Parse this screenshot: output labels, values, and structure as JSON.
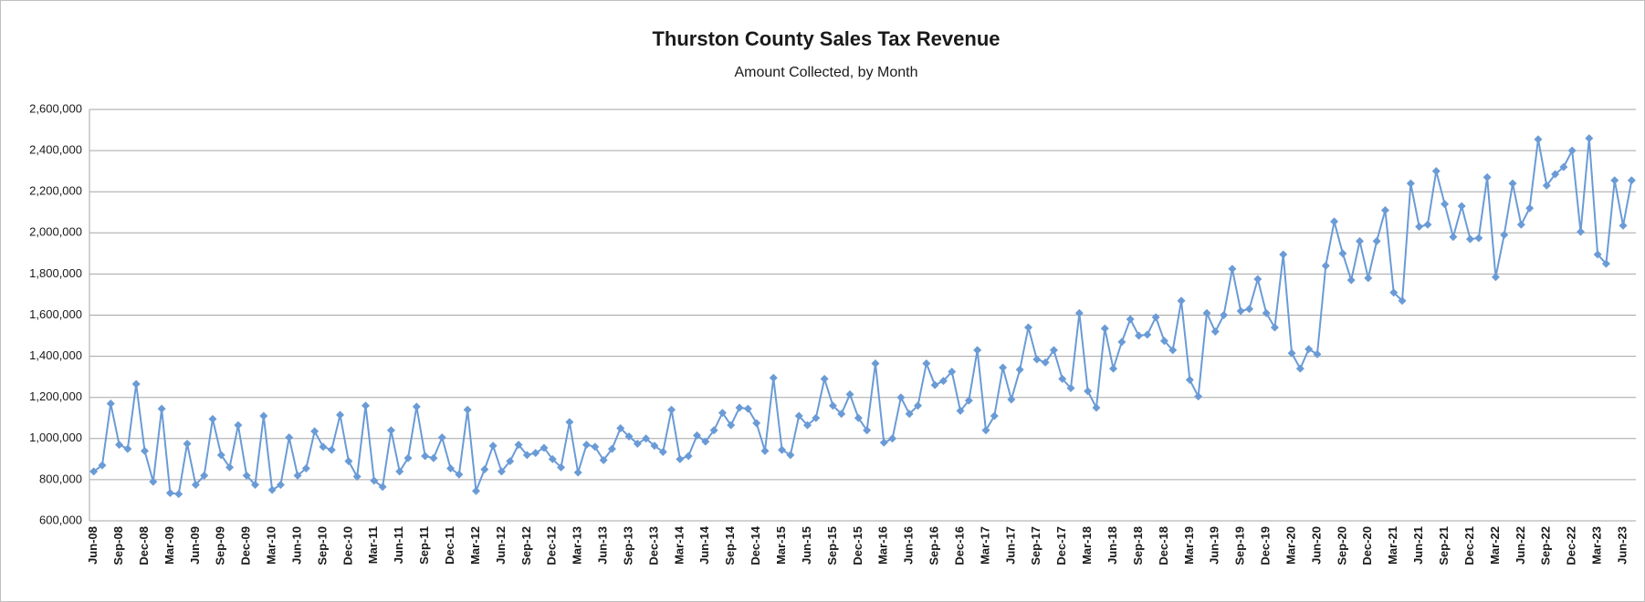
{
  "chart_data": {
    "type": "line",
    "title": "Thurston County Sales Tax Revenue",
    "subtitle": "Amount Collected, by Month",
    "ylim": [
      600000,
      2600000
    ],
    "yticks": [
      {
        "value": 600000,
        "label": "600,000"
      },
      {
        "value": 800000,
        "label": "800,000"
      },
      {
        "value": 1000000,
        "label": "1,000,000"
      },
      {
        "value": 1200000,
        "label": "1,200,000"
      },
      {
        "value": 1400000,
        "label": "1,400,000"
      },
      {
        "value": 1600000,
        "label": "1,600,000"
      },
      {
        "value": 1800000,
        "label": "1,800,000"
      },
      {
        "value": 2000000,
        "label": "2,000,000"
      },
      {
        "value": 2200000,
        "label": "2,200,000"
      },
      {
        "value": 2400000,
        "label": "2,400,000"
      },
      {
        "value": 2600000,
        "label": "2,600,000"
      }
    ],
    "grid": true,
    "categories": [
      "Jun-08",
      null,
      null,
      "Sep-08",
      null,
      null,
      "Dec-08",
      null,
      null,
      "Mar-09",
      null,
      null,
      "Jun-09",
      null,
      null,
      "Sep-09",
      null,
      null,
      "Dec-09",
      null,
      null,
      "Mar-10",
      null,
      null,
      "Jun-10",
      null,
      null,
      "Sep-10",
      null,
      null,
      "Dec-10",
      null,
      null,
      "Mar-11",
      null,
      null,
      "Jun-11",
      null,
      null,
      "Sep-11",
      null,
      null,
      "Dec-11",
      null,
      null,
      "Mar-12",
      null,
      null,
      "Jun-12",
      null,
      null,
      "Sep-12",
      null,
      null,
      "Dec-12",
      null,
      null,
      "Mar-13",
      null,
      null,
      "Jun-13",
      null,
      null,
      "Sep-13",
      null,
      null,
      "Dec-13",
      null,
      null,
      "Mar-14",
      null,
      null,
      "Jun-14",
      null,
      null,
      "Sep-14",
      null,
      null,
      "Dec-14",
      null,
      null,
      "Mar-15",
      null,
      null,
      "Jun-15",
      null,
      null,
      "Sep-15",
      null,
      null,
      "Dec-15",
      null,
      null,
      "Mar-16",
      null,
      null,
      "Jun-16",
      null,
      null,
      "Sep-16",
      null,
      null,
      "Dec-16",
      null,
      null,
      "Mar-17",
      null,
      null,
      "Jun-17",
      null,
      null,
      "Sep-17",
      null,
      null,
      "Dec-17",
      null,
      null,
      "Mar-18",
      null,
      null,
      "Jun-18",
      null,
      null,
      "Sep-18",
      null,
      null,
      "Dec-18",
      null,
      null,
      "Mar-19",
      null,
      null,
      "Jun-19",
      null,
      null,
      "Sep-19",
      null,
      null,
      "Dec-19",
      null,
      null,
      "Mar-20",
      null,
      null,
      "Jun-20",
      null,
      null,
      "Sep-20",
      null,
      null,
      "Dec-20",
      null,
      null,
      "Mar-21",
      null,
      null,
      "Jun-21",
      null,
      null,
      "Sep-21",
      null,
      null,
      "Dec-21",
      null,
      null,
      "Mar-22",
      null,
      null,
      "Jun-22",
      null,
      null,
      "Sep-22",
      null,
      null,
      "Dec-22",
      null,
      null,
      "Mar-23",
      null,
      null,
      "Jun-23",
      null
    ],
    "series": [
      {
        "color": "#6a9bd6",
        "values": [
          840000,
          870000,
          1170000,
          970000,
          950000,
          1265000,
          940000,
          790000,
          1145000,
          735000,
          730000,
          975000,
          775000,
          820000,
          1095000,
          920000,
          860000,
          1065000,
          820000,
          775000,
          1110000,
          750000,
          775000,
          1005000,
          820000,
          855000,
          1035000,
          960000,
          945000,
          1115000,
          890000,
          815000,
          1160000,
          795000,
          765000,
          1040000,
          840000,
          905000,
          1155000,
          915000,
          905000,
          1005000,
          855000,
          825000,
          1140000,
          745000,
          850000,
          965000,
          840000,
          890000,
          970000,
          920000,
          930000,
          955000,
          900000,
          860000,
          1080000,
          835000,
          970000,
          960000,
          895000,
          950000,
          1050000,
          1010000,
          975000,
          1000000,
          965000,
          935000,
          1140000,
          900000,
          915000,
          1015000,
          985000,
          1040000,
          1125000,
          1065000,
          1150000,
          1145000,
          1075000,
          940000,
          1295000,
          945000,
          920000,
          1110000,
          1065000,
          1100000,
          1290000,
          1160000,
          1120000,
          1215000,
          1100000,
          1040000,
          1365000,
          980000,
          1000000,
          1200000,
          1120000,
          1160000,
          1365000,
          1260000,
          1280000,
          1325000,
          1135000,
          1185000,
          1430000,
          1040000,
          1110000,
          1345000,
          1190000,
          1335000,
          1540000,
          1385000,
          1370000,
          1430000,
          1290000,
          1245000,
          1610000,
          1230000,
          1150000,
          1535000,
          1340000,
          1470000,
          1580000,
          1500000,
          1505000,
          1590000,
          1475000,
          1430000,
          1670000,
          1285000,
          1205000,
          1610000,
          1520000,
          1600000,
          1825000,
          1620000,
          1630000,
          1775000,
          1610000,
          1540000,
          1895000,
          1415000,
          1340000,
          1435000,
          1410000,
          1840000,
          2055000,
          1900000,
          1770000,
          1960000,
          1780000,
          1960000,
          2110000,
          1710000,
          1670000,
          2240000,
          2030000,
          2040000,
          2300000,
          2140000,
          1980000,
          2130000,
          1970000,
          1975000,
          2270000,
          1785000,
          1990000,
          2240000,
          2040000,
          2120000,
          2455000,
          2230000,
          2285000,
          2320000,
          2400000,
          2005000,
          2460000,
          1895000,
          1850000,
          2255000,
          2035000,
          2255000
        ]
      }
    ]
  }
}
